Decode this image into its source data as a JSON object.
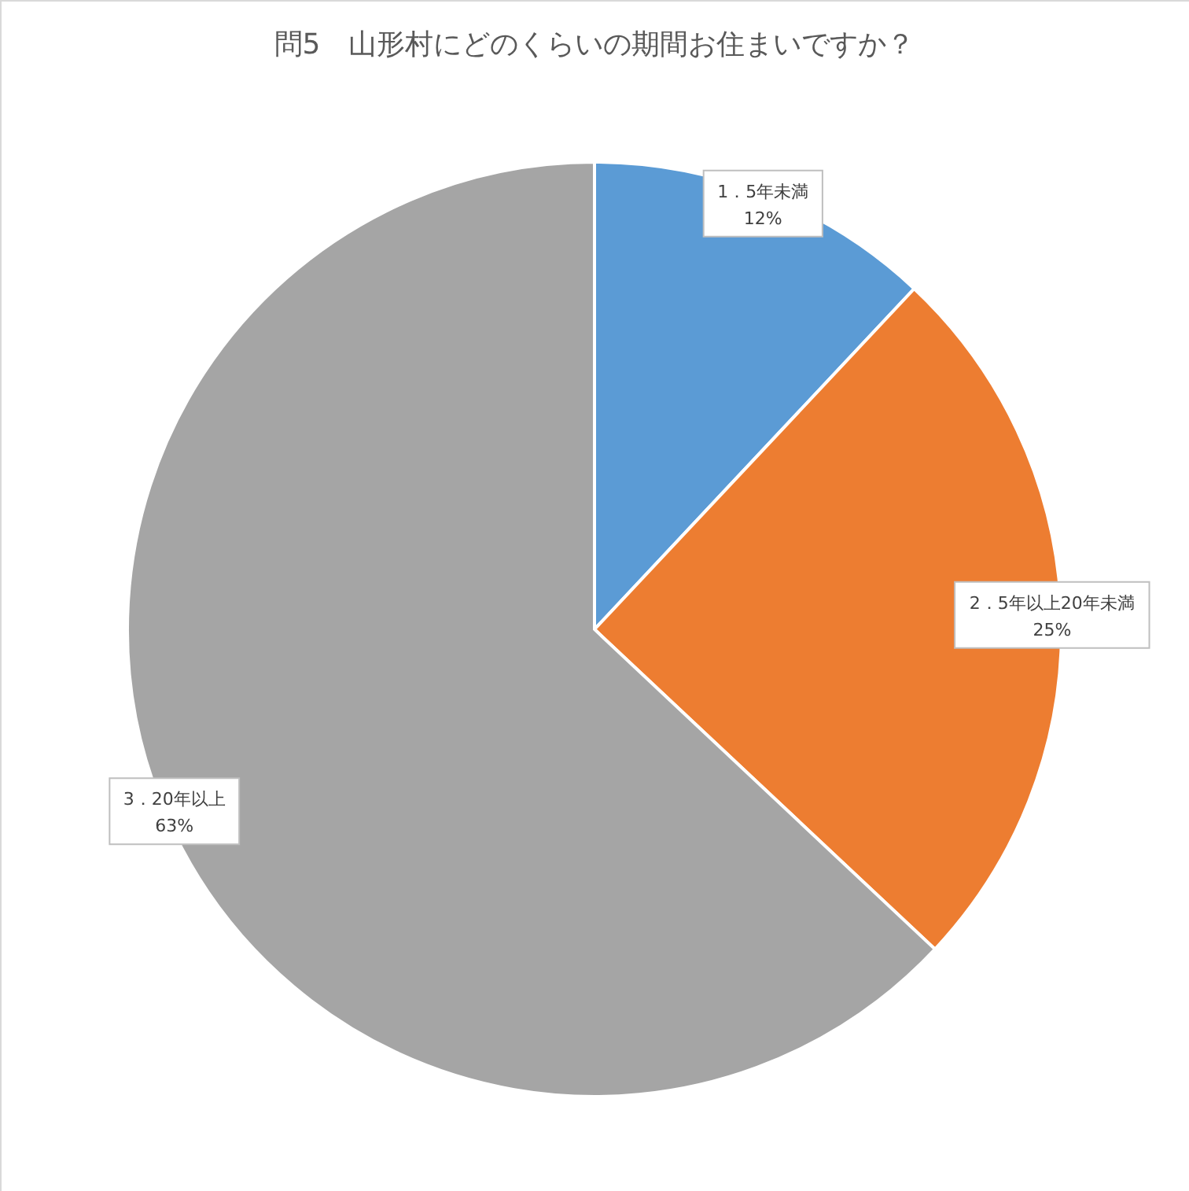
{
  "chart_data": {
    "type": "pie",
    "title": "問5　山形村にどのくらいの期間お住まいですか？",
    "categories": [
      "1．5年未満",
      "2．5年以上20年未満",
      "3．20年以上"
    ],
    "values": [
      12,
      25,
      63
    ],
    "colors": [
      "#5b9bd5",
      "#ed7d31",
      "#a5a5a5"
    ],
    "value_labels": [
      "12%",
      "25%",
      "63%"
    ]
  }
}
